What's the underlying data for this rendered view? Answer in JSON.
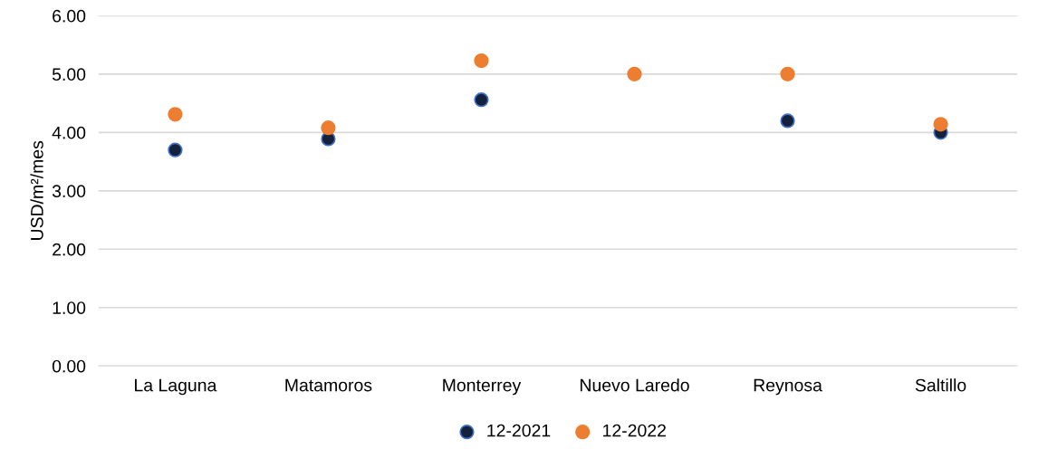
{
  "chart_data": {
    "type": "scatter",
    "ylabel": "USD/m²/mes",
    "categories": [
      "La Laguna",
      "Matamoros",
      "Monterrey",
      "Nuevo Laredo",
      "Reynosa",
      "Saltillo"
    ],
    "series": [
      {
        "name": "12-2021",
        "color": "#14213d",
        "values": [
          3.7,
          3.89,
          4.56,
          null,
          4.2,
          4.0
        ]
      },
      {
        "name": "12-2022",
        "color": "#ed7d31",
        "values": [
          4.31,
          4.08,
          5.23,
          5.0,
          5.0,
          4.14
        ]
      }
    ],
    "ylim": [
      0,
      6
    ],
    "yticks": [
      {
        "value": 0,
        "label": "0.00"
      },
      {
        "value": 1,
        "label": "1.00"
      },
      {
        "value": 2,
        "label": "2.00"
      },
      {
        "value": 3,
        "label": "3.00"
      },
      {
        "value": 4,
        "label": "4.00"
      },
      {
        "value": 5,
        "label": "5.00"
      },
      {
        "value": 6,
        "label": "6.00"
      }
    ],
    "grid": "y",
    "legend": "bottom",
    "marker": "circle"
  }
}
